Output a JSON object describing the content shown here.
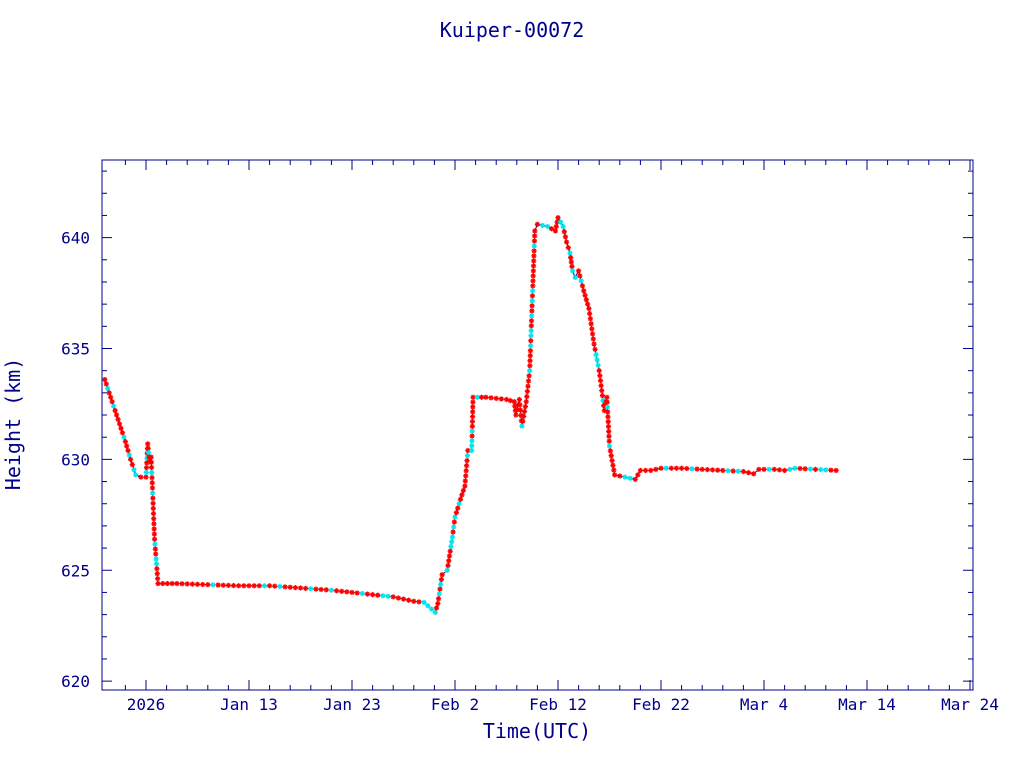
{
  "chart_data": {
    "type": "line",
    "title": "Kuiper-00072",
    "xlabel": "Time(UTC)",
    "ylabel": "Height (km)",
    "x_range_days": [
      "2026-01-03",
      "2026-03-27"
    ],
    "ylim": [
      619.6,
      643.5
    ],
    "x_ticks": [
      {
        "date": "2026-01-03",
        "label": "2026"
      },
      {
        "date": "2026-01-13",
        "label": "Jan 13"
      },
      {
        "date": "2026-01-23",
        "label": "Jan 23"
      },
      {
        "date": "2026-02-02",
        "label": "Feb  2"
      },
      {
        "date": "2026-02-12",
        "label": "Feb 12"
      },
      {
        "date": "2026-02-22",
        "label": "Feb 22"
      },
      {
        "date": "2026-03-04",
        "label": "Mar  4"
      },
      {
        "date": "2026-03-14",
        "label": "Mar 14"
      },
      {
        "date": "2026-03-24",
        "label": "Mar 24"
      }
    ],
    "y_ticks": [
      620,
      625,
      630,
      635,
      640
    ],
    "colors": {
      "line": "#00008b",
      "marker_red": "#ff0000",
      "marker_cyan": "#00e5ee",
      "axis": "#00008b"
    },
    "series": [
      {
        "points": [
          [
            "2025-12-30",
            633.6
          ],
          [
            "2025-12-31",
            632.2
          ],
          [
            "2026-01-01",
            630.8
          ],
          [
            "2026-01-01T12",
            630.0
          ],
          [
            "2026-01-02",
            629.3
          ],
          [
            "2026-01-02T12",
            629.2
          ],
          [
            "2026-01-03",
            629.2
          ],
          [
            "2026-01-03T04",
            630.7
          ],
          [
            "2026-01-03T08",
            629.9
          ],
          [
            "2026-01-03T12",
            630.1
          ],
          [
            "2026-01-03T20",
            626.4
          ],
          [
            "2026-01-04T04",
            624.4
          ],
          [
            "2026-01-06",
            624.4
          ],
          [
            "2026-01-09",
            624.35
          ],
          [
            "2026-01-12",
            624.3
          ],
          [
            "2026-01-15",
            624.3
          ],
          [
            "2026-01-18",
            624.2
          ],
          [
            "2026-01-21",
            624.1
          ],
          [
            "2026-01-24",
            623.95
          ],
          [
            "2026-01-27",
            623.8
          ],
          [
            "2026-01-29",
            623.6
          ],
          [
            "2026-01-30",
            623.55
          ],
          [
            "2026-01-31T02",
            623.1
          ],
          [
            "2026-01-31T08",
            623.5
          ],
          [
            "2026-01-31T18",
            624.8
          ],
          [
            "2026-02-01T06",
            625.0
          ],
          [
            "2026-02-01T18",
            626.5
          ],
          [
            "2026-02-02",
            627.4
          ],
          [
            "2026-02-02T16",
            628.4
          ],
          [
            "2026-02-02T23",
            628.8
          ],
          [
            "2026-02-03T06",
            630.4
          ],
          [
            "2026-02-03T15",
            630.4
          ],
          [
            "2026-02-03T18",
            632.8
          ],
          [
            "2026-02-05",
            632.8
          ],
          [
            "2026-02-07",
            632.7
          ],
          [
            "2026-02-07T18",
            632.6
          ],
          [
            "2026-02-07T22",
            632.0
          ],
          [
            "2026-02-08T06",
            632.7
          ],
          [
            "2026-02-08T12",
            631.5
          ],
          [
            "2026-02-08T22",
            632.6
          ],
          [
            "2026-02-09T06",
            634.0
          ],
          [
            "2026-02-09T18",
            640.3
          ],
          [
            "2026-02-10",
            640.6
          ],
          [
            "2026-02-11",
            640.5
          ],
          [
            "2026-02-11T18",
            640.3
          ],
          [
            "2026-02-12",
            640.9
          ],
          [
            "2026-02-12T12",
            640.5
          ],
          [
            "2026-02-12T20",
            639.8
          ],
          [
            "2026-02-13T04",
            639.3
          ],
          [
            "2026-02-13T10",
            638.5
          ],
          [
            "2026-02-13T16",
            638.2
          ],
          [
            "2026-02-14",
            638.5
          ],
          [
            "2026-02-14T12",
            637.6
          ],
          [
            "2026-02-15",
            636.8
          ],
          [
            "2026-02-15T12",
            635.2
          ],
          [
            "2026-02-16",
            634.0
          ],
          [
            "2026-02-16T12",
            632.2
          ],
          [
            "2026-02-16T18",
            632.8
          ],
          [
            "2026-02-17",
            630.6
          ],
          [
            "2026-02-17T12",
            629.3
          ],
          [
            "2026-02-18T12",
            629.2
          ],
          [
            "2026-02-19T12",
            629.1
          ],
          [
            "2026-02-20",
            629.5
          ],
          [
            "2026-02-21",
            629.5
          ],
          [
            "2026-02-22",
            629.6
          ],
          [
            "2026-02-24",
            629.6
          ],
          [
            "2026-02-26",
            629.55
          ],
          [
            "2026-02-28",
            629.5
          ],
          [
            "2026-03-02",
            629.45
          ],
          [
            "2026-03-03",
            629.35
          ],
          [
            "2026-03-03T12",
            629.55
          ],
          [
            "2026-03-05",
            629.55
          ],
          [
            "2026-03-06",
            629.5
          ],
          [
            "2026-03-07",
            629.6
          ],
          [
            "2026-03-09",
            629.55
          ],
          [
            "2026-03-11",
            629.5
          ]
        ]
      }
    ]
  }
}
